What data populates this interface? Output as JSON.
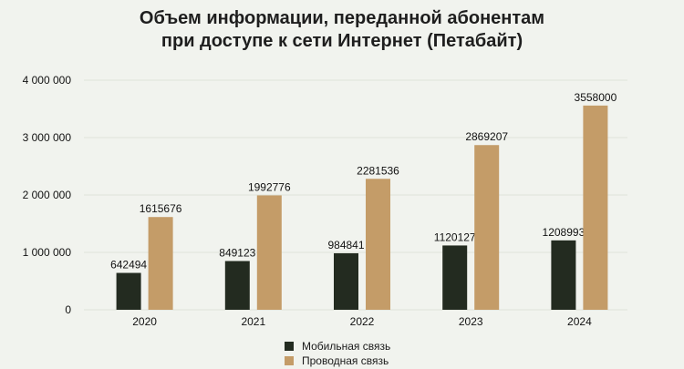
{
  "colors": {
    "background": "#f1f3ee",
    "mobile": "#232b20",
    "wired": "#c49c68",
    "grid": "#dfe3db"
  },
  "chart_data": {
    "type": "bar",
    "title": [
      "Объем информации, переданной абонентам",
      "при доступе к сети Интернет (Петабайт)"
    ],
    "categories": [
      "2020",
      "2021",
      "2022",
      "2023",
      "2024"
    ],
    "series": [
      {
        "name": "Мобильная связь",
        "values": [
          642494,
          849123,
          984841,
          1120127,
          1208993
        ]
      },
      {
        "name": "Проводная связь",
        "values": [
          1615676,
          1992776,
          2281536,
          2869207,
          3558000
        ]
      }
    ],
    "y_ticks": [
      {
        "value": 0,
        "label": "0"
      },
      {
        "value": 1000000,
        "label": "1 000 000"
      },
      {
        "value": 2000000,
        "label": "2 000 000"
      },
      {
        "value": 3000000,
        "label": "3 000 000"
      },
      {
        "value": 4000000,
        "label": "4 000 000"
      }
    ],
    "ylim": [
      0,
      4000000
    ],
    "grid": true,
    "legend_position": "bottom"
  }
}
